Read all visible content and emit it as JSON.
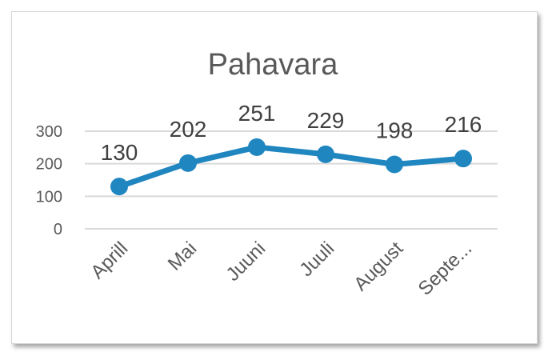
{
  "chart_data": {
    "type": "line",
    "title": "Pahavara",
    "categories": [
      "Aprill",
      "Mai",
      "Juuni",
      "Juuli",
      "August",
      "Septe..."
    ],
    "values": [
      130,
      202,
      251,
      229,
      198,
      216
    ],
    "ylim": [
      0,
      300
    ],
    "yticks": [
      "0",
      "100",
      "200",
      "300"
    ],
    "grid": true,
    "legend": "none",
    "data_labels": true,
    "colors": {
      "line": "#1F86C0",
      "grid": "#D9D9D9",
      "text": "#595959"
    }
  }
}
